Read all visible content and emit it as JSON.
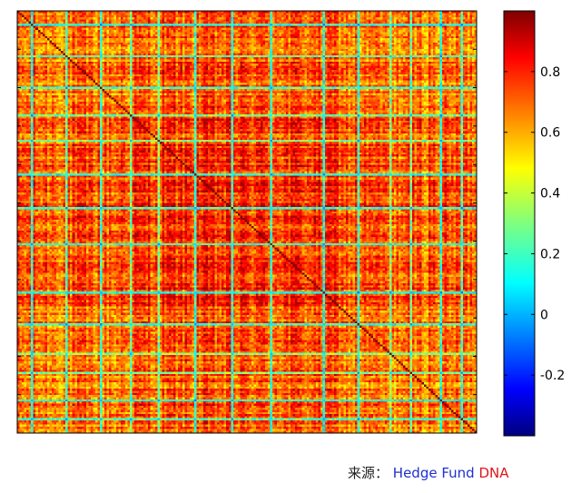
{
  "chart_data": {
    "type": "heatmap",
    "description_source": "correlation matrix of hedge fund returns",
    "matrix_size": 200,
    "diagonal_value": 1.0,
    "typical_offdiagonal_range": [
      0.3,
      0.75
    ],
    "low_correlation_bands": [
      6,
      21,
      36,
      49,
      61,
      77,
      93,
      110,
      133,
      148,
      162,
      171,
      184,
      193
    ],
    "high_correlation_block": [
      45,
      140
    ],
    "colorbar": {
      "min": -0.4,
      "max": 1.0,
      "ticks": [
        -0.2,
        0,
        0.2,
        0.4,
        0.6,
        0.8
      ],
      "tick_labels": [
        "-0.2",
        "0",
        "0.2",
        "0.4",
        "0.6",
        "0.8"
      ],
      "colormap": "jet"
    },
    "axis_tick_labels": "none",
    "grid": false,
    "legend": "colorbar-right"
  },
  "source": {
    "prefix": "来源：",
    "part1": "Hedge Fund",
    "part2": "DNA"
  },
  "colors": {
    "part1": "#1f2fd0",
    "part2": "#e0161a",
    "axes": "#000000"
  }
}
